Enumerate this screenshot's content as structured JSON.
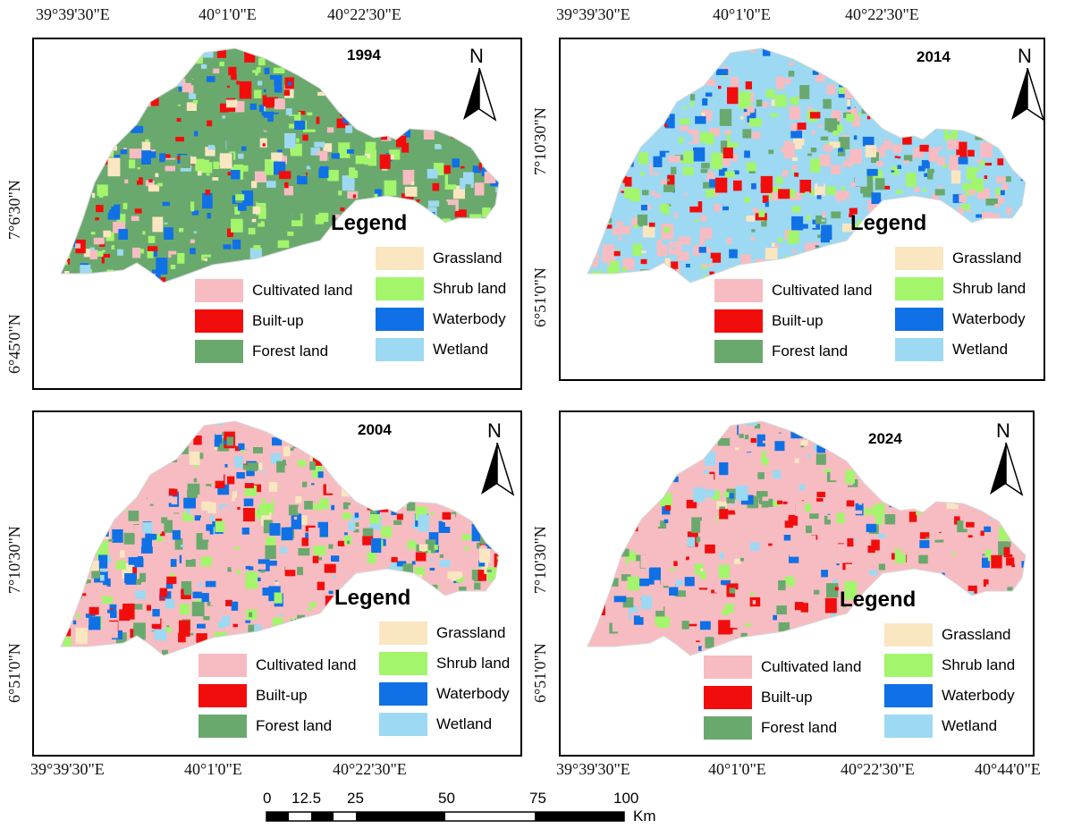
{
  "coords": {
    "top": [
      "39°39'30\"E",
      "40°1'0\"E",
      "40°22'30\"E"
    ],
    "top_right": [
      "39°39'30\"E",
      "40°1'0\"E",
      "40°22'30\"E"
    ],
    "bottom_left": [
      "39°39'30\"E",
      "40°1'0\"E",
      "40°22'30\"E"
    ],
    "bottom_right": [
      "39°39'30\"E",
      "40°1'0\"E",
      "40°22'30\"E",
      "40°44'0\"E"
    ],
    "left_top": [
      "7°6'30\"N",
      "6°45'0\"N"
    ],
    "right_top": [
      "7°10'30\"N",
      "6°51'0\"N"
    ],
    "left_bottom": [
      "7°10'30\"N",
      "6°51'0\"N"
    ],
    "right_bottom": [
      "7°10'30\"N",
      "6°51'0\"N"
    ]
  },
  "panels": [
    {
      "year": "1994",
      "north": "N"
    },
    {
      "year": "2014",
      "north": "N"
    },
    {
      "year": "2004",
      "north": "N"
    },
    {
      "year": "2024",
      "north": "N"
    }
  ],
  "legend": {
    "title": "Legend",
    "items": [
      {
        "label": "Grassland",
        "color": "#fae6c1"
      },
      {
        "label": "Cultivated land",
        "color": "#f7bcc1"
      },
      {
        "label": "Shrub land",
        "color": "#a3f56c"
      },
      {
        "label": "Built-up",
        "color": "#f20d0d"
      },
      {
        "label": "Waterbody",
        "color": "#1070e6"
      },
      {
        "label": "Forest land",
        "color": "#6aa96e"
      },
      {
        "label": "Wetland",
        "color": "#9dd9f2"
      }
    ]
  },
  "scale": {
    "ticks": [
      "0",
      "12.5",
      "25",
      "50",
      "75",
      "100"
    ],
    "unit": "Km"
  }
}
